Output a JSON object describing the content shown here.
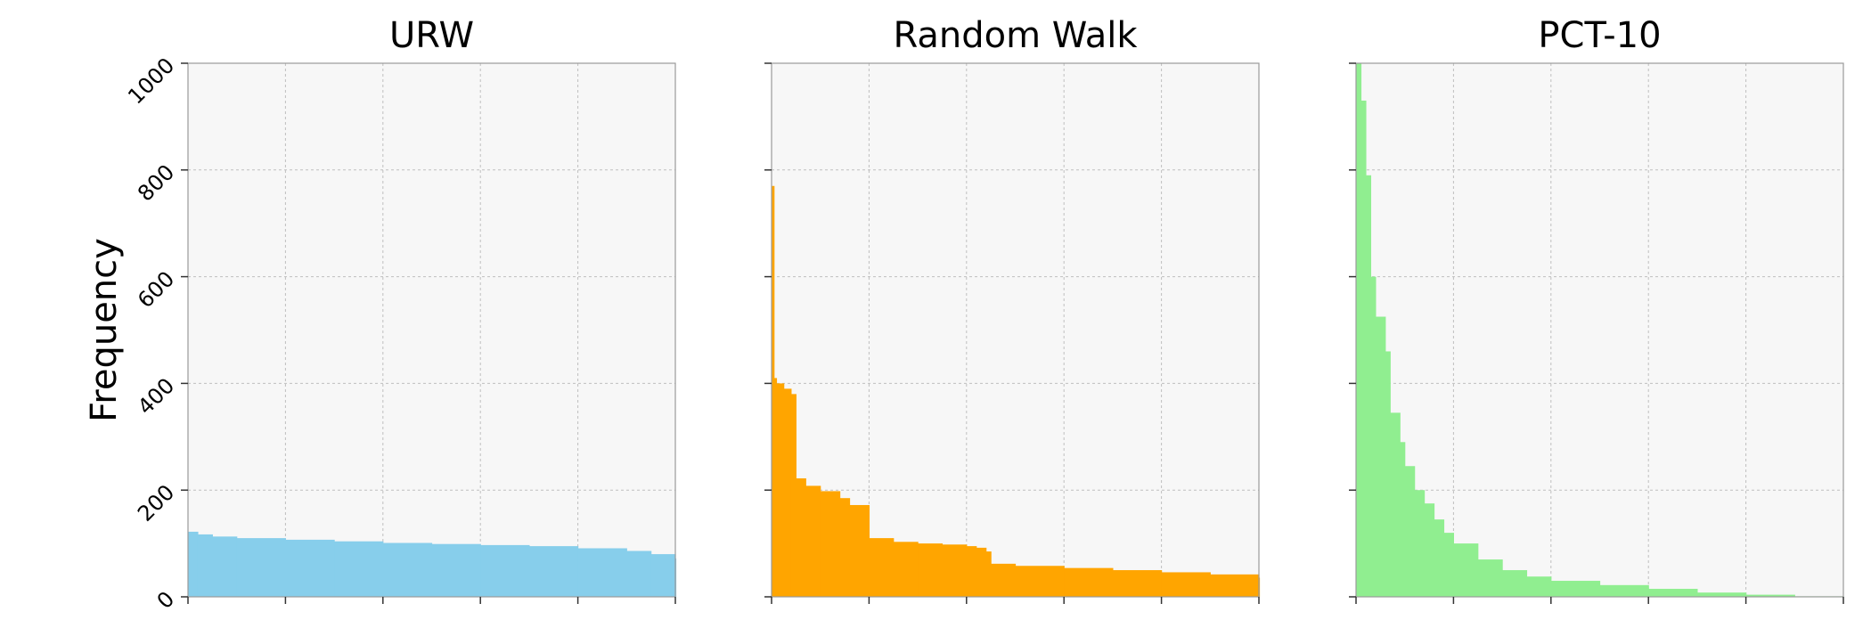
{
  "chart_data": {
    "type": "bar",
    "ylabel": "Frequency",
    "ylim": [
      0,
      1000
    ],
    "yticks": [
      "0",
      "200",
      "400",
      "600",
      "800",
      "1000"
    ],
    "grid": true,
    "panels": [
      {
        "title": "URW",
        "color": "#87ceeb",
        "x": [
          0,
          0.02,
          0.05,
          0.1,
          0.2,
          0.3,
          0.4,
          0.5,
          0.6,
          0.7,
          0.8,
          0.9,
          0.95,
          1.0
        ],
        "values": [
          122,
          117,
          113,
          110,
          107,
          104,
          101,
          99,
          97,
          95,
          91,
          86,
          80,
          72
        ]
      },
      {
        "title": "Random Walk",
        "color": "#ffa500",
        "x": [
          0,
          0.005,
          0.01,
          0.025,
          0.04,
          0.05,
          0.07,
          0.1,
          0.14,
          0.16,
          0.2,
          0.25,
          0.3,
          0.35,
          0.4,
          0.42,
          0.44,
          0.45,
          0.5,
          0.6,
          0.7,
          0.8,
          0.9,
          1.0
        ],
        "values": [
          770,
          410,
          400,
          390,
          380,
          222,
          208,
          198,
          185,
          172,
          110,
          103,
          100,
          98,
          95,
          92,
          85,
          62,
          58,
          54,
          50,
          46,
          42,
          36
        ]
      },
      {
        "title": "PCT-10",
        "color": "#90ee90",
        "x": [
          0,
          0.01,
          0.02,
          0.03,
          0.04,
          0.06,
          0.07,
          0.09,
          0.1,
          0.12,
          0.14,
          0.16,
          0.18,
          0.2,
          0.25,
          0.3,
          0.35,
          0.4,
          0.5,
          0.6,
          0.7,
          0.8,
          0.9,
          1.0
        ],
        "values": [
          1000,
          930,
          790,
          600,
          525,
          460,
          345,
          290,
          245,
          200,
          175,
          145,
          120,
          100,
          70,
          50,
          38,
          30,
          22,
          15,
          8,
          4,
          1,
          0
        ]
      }
    ]
  }
}
